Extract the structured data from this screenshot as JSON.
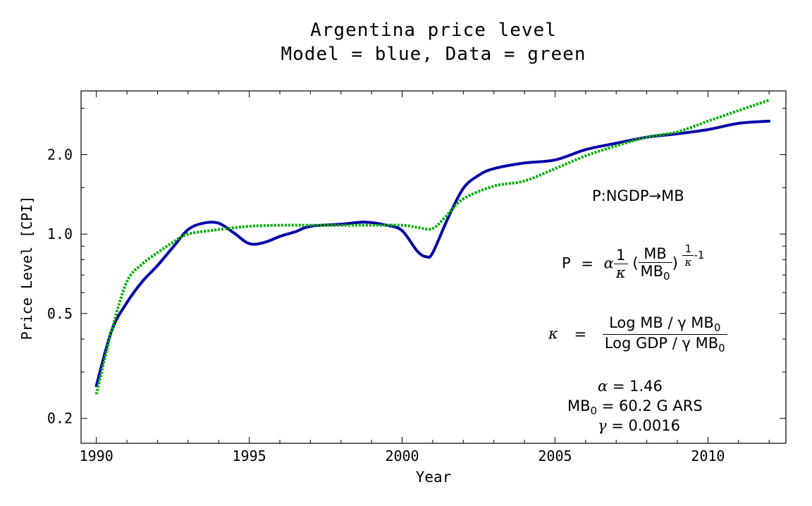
{
  "chart_data": {
    "type": "line",
    "title": "Argentina price level",
    "subtitle": "Model = blue, Data = green",
    "xlabel": "Year",
    "ylabel": "Price Level [CPI]",
    "xlim": [
      1989.5,
      2012.55
    ],
    "ylim": [
      0.161,
      3.49
    ],
    "yscale": "log",
    "grid": false,
    "x_ticks": [
      1990,
      1995,
      2000,
      2005,
      2010
    ],
    "x_tick_labels": [
      "1990",
      "1995",
      "2000",
      "2005",
      "2010"
    ],
    "y_ticks": [
      0.2,
      0.5,
      1.0,
      2.0
    ],
    "y_tick_labels": [
      "0.2",
      "0.5",
      "1.0",
      "2.0"
    ],
    "series": [
      {
        "color": "#0000a8",
        "style": "solid",
        "x": [
          1990,
          1990.5,
          1991,
          1991.5,
          1992,
          1992.5,
          1993,
          1993.5,
          1994,
          1994.5,
          1995,
          1995.5,
          1996,
          1996.5,
          1997,
          1998,
          1998.8,
          1999.5,
          2000,
          2000.5,
          2000.8,
          2001,
          2001.5,
          2002,
          2002.5,
          2003,
          2004,
          2005,
          2006,
          2007,
          2008,
          2009,
          2010,
          2011,
          2012
        ],
        "y": [
          0.266,
          0.43,
          0.55,
          0.66,
          0.76,
          0.89,
          1.04,
          1.1,
          1.1,
          1.01,
          0.92,
          0.93,
          0.98,
          1.02,
          1.07,
          1.09,
          1.11,
          1.08,
          1.03,
          0.86,
          0.82,
          0.85,
          1.15,
          1.49,
          1.67,
          1.77,
          1.86,
          1.91,
          2.09,
          2.21,
          2.33,
          2.4,
          2.49,
          2.63,
          2.68
        ]
      },
      {
        "color": "#00b000",
        "style": "dotted",
        "x": [
          1990,
          1990.5,
          1991,
          1991.5,
          1992,
          1992.5,
          1993,
          1994,
          1995,
          1996,
          1997,
          1998,
          1999,
          2000,
          2000.5,
          2001,
          2001.5,
          2002,
          2003,
          2004,
          2005,
          2006,
          2007,
          2008,
          2009,
          2010,
          2011,
          2012
        ],
        "y": [
          0.247,
          0.43,
          0.66,
          0.77,
          0.85,
          0.93,
          1.0,
          1.04,
          1.07,
          1.08,
          1.08,
          1.08,
          1.08,
          1.08,
          1.06,
          1.05,
          1.19,
          1.36,
          1.52,
          1.59,
          1.77,
          1.98,
          2.16,
          2.33,
          2.44,
          2.68,
          2.94,
          3.22
        ]
      }
    ]
  },
  "annotations": {
    "mapping": "P:NGDP→MB",
    "eq1": {
      "lhs": "P",
      "eq": "=",
      "alpha": "α",
      "one": "1",
      "kappa": "κ",
      "lparen": "(",
      "num": "MB",
      "den": "MB",
      "den_sub": "0",
      "rparen": ")",
      "exp_one": "1",
      "exp_kappa": "κ",
      "exp_rest": "-1"
    },
    "eq2": {
      "lhs": "κ",
      "eq": "=",
      "num": "Log MB / γ MB",
      "num_sub": "0",
      "den": "Log GDP / γ MB",
      "den_sub": "0"
    },
    "params": {
      "alpha_sym": "α",
      "alpha_val": "= 1.46",
      "mb0_sym": "MB",
      "mb0_sub": "0",
      "mb0_val": "= 60.2 G ARS",
      "gamma_sym": "γ",
      "gamma_val": "= 0.0016"
    }
  }
}
